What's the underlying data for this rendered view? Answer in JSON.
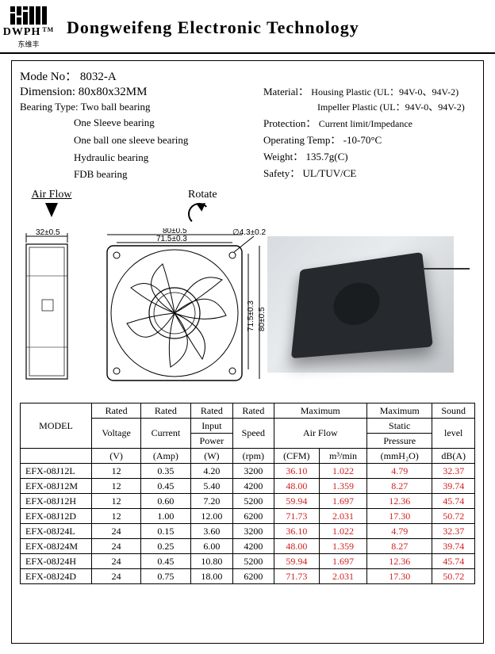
{
  "brand": {
    "name": "DWPH",
    "sub": "东维丰",
    "tm": "TM"
  },
  "company_title": "Dongweifeng  Electronic  Technology",
  "spec": {
    "mode_label": "Mode No：",
    "mode_value": "8032-A",
    "dimension_label": "Dimension:",
    "dimension_value": "80x80x32MM",
    "bearing_label": "Bearing Type:",
    "bearing_main": "Two ball bearing",
    "bearing_options": [
      "One Sleeve bearing",
      "One ball one sleeve bearing",
      "Hydraulic     bearing",
      "FDB     bearing"
    ],
    "material_label": "Material：",
    "material_housing": "Housing Plastic (UL：94V-0、94V-2)",
    "material_impeller": "Impeller Plastic (UL：94V-0、94V-2)",
    "protection_label": "Protection：",
    "protection_value": "Current limit/Impedance",
    "optemp_label": "Operating Temp：",
    "optemp_value": "-10-70°C",
    "weight_label": "Weight：",
    "weight_value": "135.7g(C)",
    "safety_label": "Safety：",
    "safety_value": "UL/TUV/CE"
  },
  "labels": {
    "airflow": "Air Flow",
    "rotate": "Rotate"
  },
  "dimensions": {
    "depth": "32±0.5",
    "outer": "80±0.5",
    "hole_pitch": "71.5±0.3",
    "hole_dia": "∅4.3±0.2",
    "outer_v": "80±0.5",
    "hole_pitch_v": "71.5±0.3"
  },
  "table": {
    "headers": {
      "model": "MODEL",
      "rated_voltage_top": "Rated",
      "rated_voltage_mid": "Voltage",
      "rated_voltage_unit": "(V)",
      "rated_current_top": "Rated",
      "rated_current_mid": "Current",
      "rated_current_unit": "(Amp)",
      "rated_input_top": "Rated",
      "rated_input_mid": "Input",
      "rated_input_mid2": "Power",
      "rated_input_unit": "(W)",
      "rated_speed_top": "Rated",
      "rated_speed_mid": "Speed",
      "rated_speed_unit": "(rpm)",
      "airflow_top": "Maximum",
      "airflow_mid": "Air Flow",
      "airflow_u1": "(CFM)",
      "airflow_u2": "m³/min",
      "static_top": "Maximum",
      "static_mid": "Static",
      "static_mid2": "Pressure",
      "static_unit": "(mmH₂O)",
      "sound_top": "Sound",
      "sound_mid": "level",
      "sound_unit": "dB(A)"
    },
    "rows": [
      {
        "model": "EFX-08J12L",
        "v": "12",
        "a": "0.35",
        "w": "4.20",
        "rpm": "3200",
        "cfm": "36.10",
        "m3": "1.022",
        "mmh2o": "4.79",
        "db": "32.37"
      },
      {
        "model": "EFX-08J12M",
        "v": "12",
        "a": "0.45",
        "w": "5.40",
        "rpm": "4200",
        "cfm": "48.00",
        "m3": "1.359",
        "mmh2o": "8.27",
        "db": "39.74"
      },
      {
        "model": "EFX-08J12H",
        "v": "12",
        "a": "0.60",
        "w": "7.20",
        "rpm": "5200",
        "cfm": "59.94",
        "m3": "1.697",
        "mmh2o": "12.36",
        "db": "45.74"
      },
      {
        "model": "EFX-08J12D",
        "v": "12",
        "a": "1.00",
        "w": "12.00",
        "rpm": "6200",
        "cfm": "71.73",
        "m3": "2.031",
        "mmh2o": "17.30",
        "db": "50.72"
      },
      {
        "model": "EFX-08J24L",
        "v": "24",
        "a": "0.15",
        "w": "3.60",
        "rpm": "3200",
        "cfm": "36.10",
        "m3": "1.022",
        "mmh2o": "4.79",
        "db": "32.37"
      },
      {
        "model": "EFX-08J24M",
        "v": "24",
        "a": "0.25",
        "w": "6.00",
        "rpm": "4200",
        "cfm": "48.00",
        "m3": "1.359",
        "mmh2o": "8.27",
        "db": "39.74"
      },
      {
        "model": "EFX-08J24H",
        "v": "24",
        "a": "0.45",
        "w": "10.80",
        "rpm": "5200",
        "cfm": "59.94",
        "m3": "1.697",
        "mmh2o": "12.36",
        "db": "45.74"
      },
      {
        "model": "EFX-08J24D",
        "v": "24",
        "a": "0.75",
        "w": "18.00",
        "rpm": "6200",
        "cfm": "71.73",
        "m3": "2.031",
        "mmh2o": "17.30",
        "db": "50.72"
      }
    ]
  },
  "colors": {
    "red": "#d21f1f",
    "black": "#000000",
    "bg": "#ffffff"
  }
}
